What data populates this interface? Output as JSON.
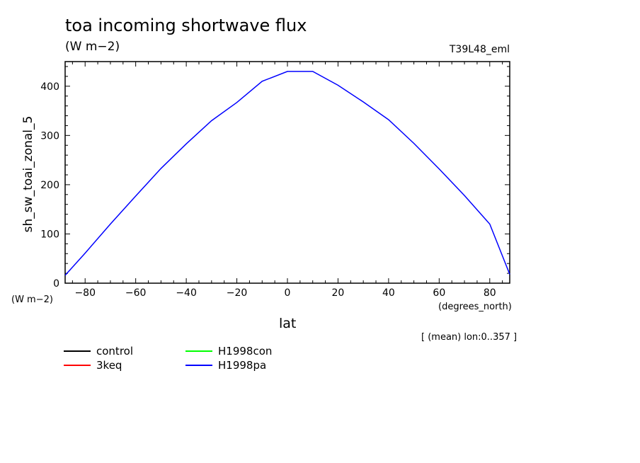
{
  "chart_data": {
    "type": "line",
    "title": "toa incoming shortwave flux",
    "units": "(W m−2)",
    "run_label": "T39L48_eml",
    "ylabel": "sh_sw_toai_zonal_5",
    "yunits": "(W m−2)",
    "xlabel": "lat",
    "xunits": "(degrees_north)",
    "note": "[ (mean) lon:0..357 ]",
    "xlim": [
      -87.9,
      87.9
    ],
    "ylim": [
      0,
      450
    ],
    "xticks": [
      -80,
      -60,
      -40,
      -20,
      0,
      20,
      40,
      60,
      80
    ],
    "xtick_labels": [
      "−80",
      "−60",
      "−40",
      "−20",
      "0",
      "20",
      "40",
      "60",
      "80"
    ],
    "yticks": [
      0,
      100,
      200,
      300,
      400
    ],
    "ytick_labels": [
      "0",
      "100",
      "200",
      "300",
      "400"
    ],
    "grid": false,
    "legend": [
      {
        "name": "control",
        "color": "#000000"
      },
      {
        "name": "3keq",
        "color": "#ff0000"
      },
      {
        "name": "H1998con",
        "color": "#00ff00"
      },
      {
        "name": "H1998pa",
        "color": "#0000ff"
      }
    ],
    "series": [
      {
        "name": "H1998pa",
        "color": "#0000ff",
        "x": [
          -87.9,
          -80,
          -70,
          -60,
          -50,
          -40,
          -30,
          -20,
          -10,
          0,
          10,
          20,
          30,
          40,
          50,
          60,
          70,
          80,
          87.9
        ],
        "y": [
          16,
          61,
          120,
          177,
          233,
          283,
          330,
          367,
          410,
          430,
          430,
          402,
          368,
          332,
          284,
          232,
          178,
          120,
          18
        ]
      }
    ]
  }
}
